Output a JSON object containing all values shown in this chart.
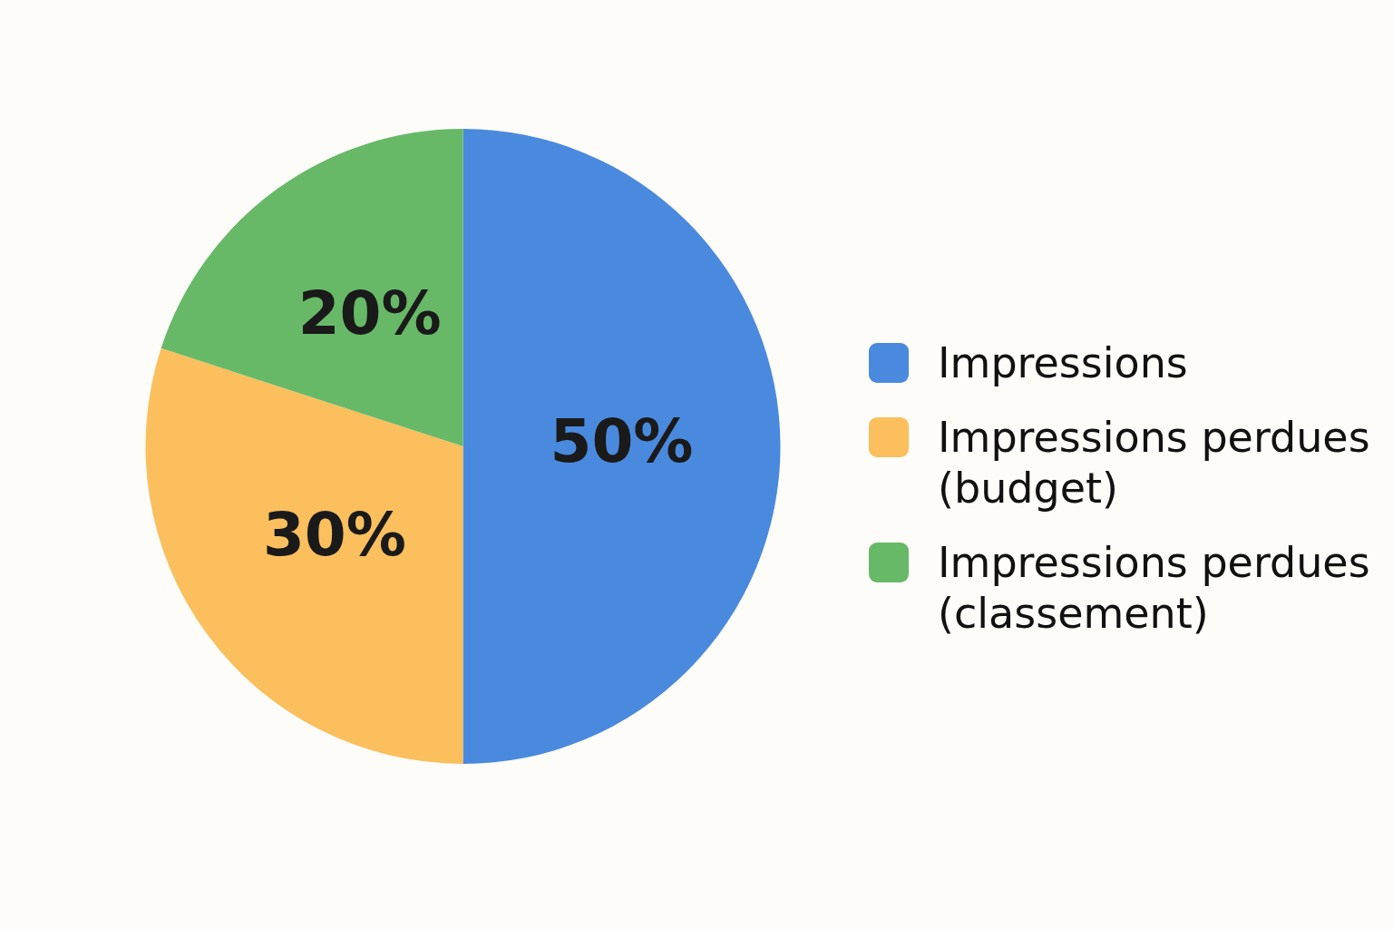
{
  "chart_data": {
    "type": "pie",
    "categories": [
      "Impressions",
      "Impressions perdues (budget)",
      "Impressions perdues (classement)"
    ],
    "values": [
      50,
      30,
      20
    ],
    "colors": [
      "#4a8ade",
      "#fbbf5e",
      "#67b967"
    ],
    "value_labels": [
      "50%",
      "30%",
      "20%"
    ],
    "legend": "right"
  }
}
